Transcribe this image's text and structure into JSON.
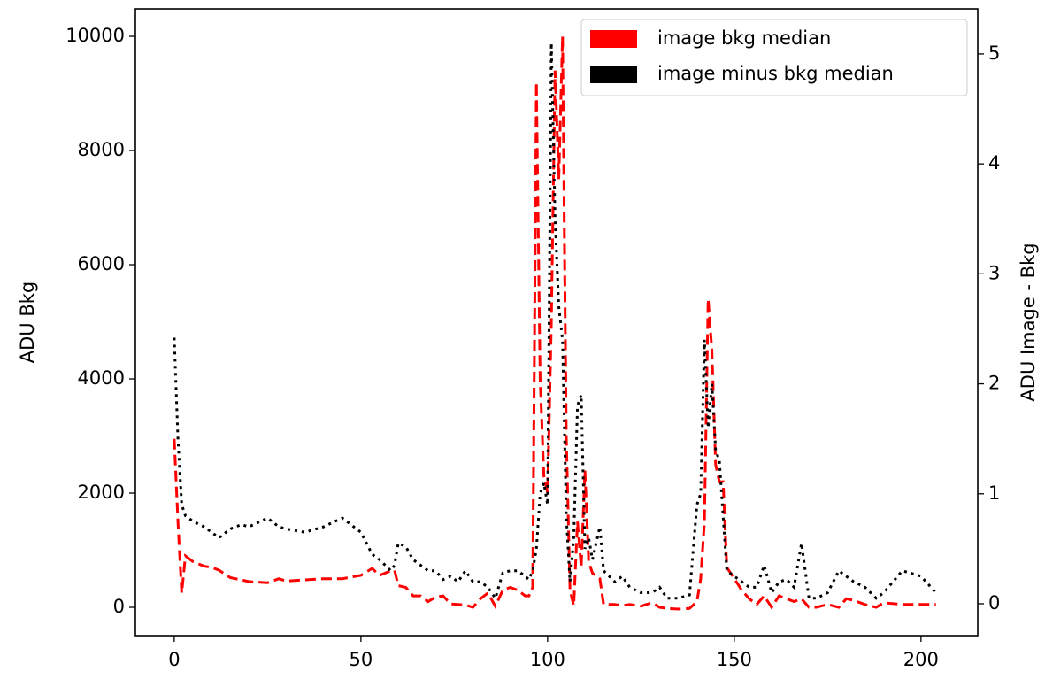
{
  "chart_data": {
    "type": "line",
    "x": [
      0,
      1,
      2,
      3,
      5,
      8,
      10,
      12,
      15,
      18,
      20,
      25,
      28,
      30,
      35,
      40,
      45,
      50,
      53,
      55,
      58,
      59,
      60,
      62,
      64,
      66,
      68,
      70,
      72,
      74,
      76,
      78,
      80,
      82,
      84,
      86,
      88,
      90,
      92,
      94,
      95,
      96,
      97,
      98,
      99,
      100,
      101,
      102,
      103,
      104,
      105,
      106,
      107,
      108,
      109,
      110,
      111,
      112,
      114,
      115,
      118,
      120,
      122,
      125,
      128,
      130,
      132,
      135,
      138,
      140,
      141,
      142,
      143,
      144,
      145,
      146,
      147,
      148,
      150,
      152,
      154,
      156,
      158,
      160,
      162,
      164,
      166,
      168,
      170,
      172,
      175,
      178,
      180,
      182,
      185,
      188,
      190,
      195,
      200,
      204
    ],
    "series": [
      {
        "name": "image bkg median",
        "color": "#ff0000",
        "linestyle": "dashed",
        "values": [
          2950,
          1500,
          250,
          900,
          800,
          720,
          700,
          650,
          520,
          480,
          450,
          430,
          500,
          460,
          480,
          500,
          500,
          560,
          680,
          560,
          640,
          650,
          380,
          350,
          200,
          200,
          100,
          180,
          200,
          60,
          50,
          40,
          0,
          150,
          250,
          20,
          300,
          350,
          300,
          200,
          200,
          350,
          9200,
          4000,
          2300,
          2000,
          5000,
          9400,
          7500,
          10000,
          3000,
          300,
          30,
          1500,
          700,
          2400,
          800,
          600,
          500,
          50,
          50,
          30,
          50,
          20,
          80,
          0,
          -20,
          -30,
          -20,
          100,
          500,
          1500,
          5400,
          4500,
          2500,
          2200,
          2200,
          700,
          500,
          300,
          150,
          50,
          200,
          0,
          200,
          150,
          100,
          150,
          0,
          0,
          50,
          0,
          150,
          120,
          50,
          0,
          80,
          50,
          50,
          50
        ]
      },
      {
        "name": "image minus bkg median",
        "color": "#000000",
        "linestyle": "dotted",
        "axis": "y2",
        "values": [
          2.42,
          1.5,
          0.9,
          0.8,
          0.75,
          0.7,
          0.65,
          0.6,
          0.68,
          0.72,
          0.7,
          0.78,
          0.7,
          0.68,
          0.65,
          0.7,
          0.78,
          0.65,
          0.45,
          0.4,
          0.3,
          0.35,
          0.55,
          0.52,
          0.4,
          0.35,
          0.3,
          0.3,
          0.22,
          0.25,
          0.2,
          0.3,
          0.2,
          0.2,
          0.15,
          0.05,
          0.28,
          0.3,
          0.3,
          0.25,
          0.22,
          0.3,
          0.5,
          1.0,
          1.1,
          0.9,
          5.1,
          3.5,
          2.7,
          2.4,
          0.8,
          0.2,
          0.6,
          1.8,
          1.9,
          0.5,
          0.6,
          0.4,
          0.7,
          0.3,
          0.2,
          0.25,
          0.15,
          0.1,
          0.1,
          0.15,
          0.05,
          0.05,
          0.08,
          0.9,
          1.0,
          2.4,
          1.6,
          2.0,
          1.4,
          1.3,
          0.8,
          0.3,
          0.25,
          0.2,
          0.15,
          0.15,
          0.35,
          0.1,
          0.2,
          0.22,
          0.15,
          0.55,
          0.05,
          0.05,
          0.1,
          0.3,
          0.25,
          0.2,
          0.15,
          0.05,
          0.1,
          0.3,
          0.25,
          0.1
        ]
      }
    ],
    "ylabel": "ADU Bkg",
    "y2label": "ADU Image - Bkg",
    "xlim": [
      -10.4,
      215.2
    ],
    "xticks": [
      0,
      50,
      100,
      150,
      200
    ],
    "ylim": [
      -496,
      10481
    ],
    "yticks": [
      0,
      2000,
      4000,
      6000,
      8000,
      10000
    ],
    "y2lim": [
      -0.29,
      5.41
    ],
    "y2ticks": [
      0,
      1,
      2,
      3,
      4,
      5
    ],
    "legend": "upper right",
    "grid": false
  }
}
